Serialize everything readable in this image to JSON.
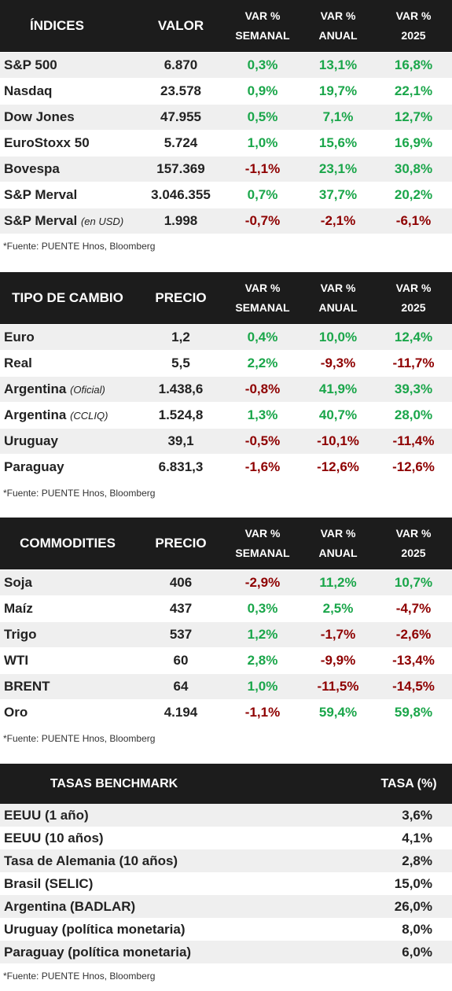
{
  "indices": {
    "headers": {
      "name": "ÍNDICES",
      "value": "VALOR",
      "w1": "VAR %",
      "w2": "SEMANAL",
      "a1": "VAR %",
      "a2": "ANUAL",
      "y1": "VAR %",
      "y2": "2025"
    },
    "rows": [
      {
        "name": "S&P 500",
        "note": "",
        "value": "6.870",
        "week": "0,3%",
        "year": "13,1%",
        "ytd": "16,8%"
      },
      {
        "name": "Nasdaq",
        "note": "",
        "value": "23.578",
        "week": "0,9%",
        "year": "19,7%",
        "ytd": "22,1%"
      },
      {
        "name": "Dow Jones",
        "note": "",
        "value": "47.955",
        "week": "0,5%",
        "year": "7,1%",
        "ytd": "12,7%"
      },
      {
        "name": "EuroStoxx 50",
        "note": "",
        "value": "5.724",
        "week": "1,0%",
        "year": "15,6%",
        "ytd": "16,9%"
      },
      {
        "name": "Bovespa",
        "note": "",
        "value": "157.369",
        "week": "-1,1%",
        "year": "23,1%",
        "ytd": "30,8%"
      },
      {
        "name": "S&P Merval",
        "note": "",
        "value": "3.046.355",
        "week": "0,7%",
        "year": "37,7%",
        "ytd": "20,2%"
      },
      {
        "name": "S&P Merval",
        "note": "(en USD)",
        "value": "1.998",
        "week": "-0,7%",
        "year": "-2,1%",
        "ytd": "-6,1%"
      }
    ],
    "source": "*Fuente: PUENTE Hnos, Bloomberg"
  },
  "fx": {
    "headers": {
      "name": "TIPO DE CAMBIO",
      "value": "PRECIO",
      "w1": "VAR %",
      "w2": "SEMANAL",
      "a1": "VAR %",
      "a2": "ANUAL",
      "y1": "VAR %",
      "y2": "2025"
    },
    "rows": [
      {
        "name": "Euro",
        "note": "",
        "value": "1,2",
        "week": "0,4%",
        "year": "10,0%",
        "ytd": "12,4%"
      },
      {
        "name": "Real",
        "note": "",
        "value": "5,5",
        "week": "2,2%",
        "year": "-9,3%",
        "ytd": "-11,7%"
      },
      {
        "name": "Argentina",
        "note": "(Oficial)",
        "value": "1.438,6",
        "week": "-0,8%",
        "year": "41,9%",
        "ytd": "39,3%"
      },
      {
        "name": "Argentina",
        "note": "(CCLIQ)",
        "value": "1.524,8",
        "week": "1,3%",
        "year": "40,7%",
        "ytd": "28,0%"
      },
      {
        "name": "Uruguay",
        "note": "",
        "value": "39,1",
        "week": "-0,5%",
        "year": "-10,1%",
        "ytd": "-11,4%"
      },
      {
        "name": "Paraguay",
        "note": "",
        "value": "6.831,3",
        "week": "-1,6%",
        "year": "-12,6%",
        "ytd": "-12,6%"
      }
    ],
    "source": "*Fuente: PUENTE Hnos, Bloomberg"
  },
  "commodities": {
    "headers": {
      "name": "COMMODITIES",
      "value": "PRECIO",
      "w1": "VAR %",
      "w2": "SEMANAL",
      "a1": "VAR %",
      "a2": "ANUAL",
      "y1": "VAR %",
      "y2": "2025"
    },
    "rows": [
      {
        "name": "Soja",
        "note": "",
        "value": "406",
        "week": "-2,9%",
        "year": "11,2%",
        "ytd": "10,7%"
      },
      {
        "name": "Maíz",
        "note": "",
        "value": "437",
        "week": "0,3%",
        "year": "2,5%",
        "ytd": "-4,7%"
      },
      {
        "name": "Trigo",
        "note": "",
        "value": "537",
        "week": "1,2%",
        "year": "-1,7%",
        "ytd": "-2,6%"
      },
      {
        "name": "WTI",
        "note": "",
        "value": "60",
        "week": "2,8%",
        "year": "-9,9%",
        "ytd": "-13,4%"
      },
      {
        "name": "BRENT",
        "note": "",
        "value": "64",
        "week": "1,0%",
        "year": "-11,5%",
        "ytd": "-14,5%"
      },
      {
        "name": "Oro",
        "note": "",
        "value": "4.194",
        "week": "-1,1%",
        "year": "59,4%",
        "ytd": "59,8%"
      }
    ],
    "source": "*Fuente: PUENTE Hnos, Bloomberg"
  },
  "rates": {
    "headers": {
      "name": "TASAS BENCHMARK",
      "value": "TASA (%)"
    },
    "rows": [
      {
        "name": "EEUU (1 año)",
        "value": "3,6%"
      },
      {
        "name": "EEUU (10 años)",
        "value": "4,1%"
      },
      {
        "name": "Tasa de Alemania (10 años)",
        "value": "2,8%"
      },
      {
        "name": "Brasil (SELIC)",
        "value": "15,0%"
      },
      {
        "name": "Argentina (BADLAR)",
        "value": "26,0%"
      },
      {
        "name": "Uruguay (política monetaria)",
        "value": "8,0%"
      },
      {
        "name": "Paraguay (política monetaria)",
        "value": "6,0%"
      }
    ],
    "source": "*Fuente: PUENTE Hnos, Bloomberg"
  },
  "colors": {
    "header_bg": "#1c1c1c",
    "positive": "#1aa64a",
    "negative": "#8e0000",
    "alt_row": "#efefef"
  }
}
